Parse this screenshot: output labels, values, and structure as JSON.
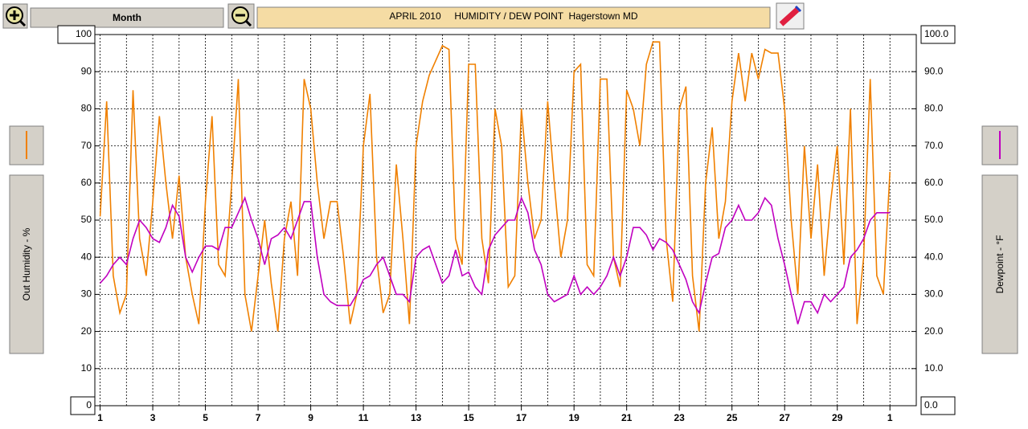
{
  "toolbar": {
    "period": "Month"
  },
  "chart_data": {
    "type": "line",
    "title": "APRIL 2010     HUMIDITY / DEW POINT  Hagerstown MD",
    "ylabel": "Out Humidity - %",
    "y2label": "Dewpoint - °F",
    "x": [
      1,
      1.25,
      1.5,
      1.75,
      2,
      2.25,
      2.5,
      2.75,
      3,
      3.25,
      3.5,
      3.75,
      4,
      4.25,
      4.5,
      4.75,
      5,
      5.25,
      5.5,
      5.75,
      6,
      6.25,
      6.5,
      6.75,
      7,
      7.25,
      7.5,
      7.75,
      8,
      8.25,
      8.5,
      8.75,
      9,
      9.25,
      9.5,
      9.75,
      10,
      10.25,
      10.5,
      10.75,
      11,
      11.25,
      11.5,
      11.75,
      12,
      12.25,
      12.5,
      12.75,
      13,
      13.25,
      13.5,
      13.75,
      14,
      14.25,
      14.5,
      14.75,
      15,
      15.25,
      15.5,
      15.75,
      16,
      16.25,
      16.5,
      16.75,
      17,
      17.25,
      17.5,
      17.75,
      18,
      18.25,
      18.5,
      18.75,
      19,
      19.25,
      19.5,
      19.75,
      20,
      20.25,
      20.5,
      20.75,
      21,
      21.25,
      21.5,
      21.75,
      22,
      22.25,
      22.5,
      22.75,
      23,
      23.25,
      23.5,
      23.75,
      24,
      24.25,
      24.5,
      24.75,
      25,
      25.25,
      25.5,
      25.75,
      26,
      26.25,
      26.5,
      26.75,
      27,
      27.25,
      27.5,
      27.75,
      28,
      28.25,
      28.5,
      28.75,
      29,
      29.25,
      29.5,
      29.75,
      30,
      30.25,
      30.5,
      30.75,
      31
    ],
    "series": [
      {
        "name": "Out Humidity",
        "color": "#f08000",
        "values": [
          51,
          82,
          35,
          25,
          30,
          85,
          45,
          35,
          55,
          78,
          60,
          45,
          62,
          40,
          30,
          22,
          55,
          78,
          38,
          35,
          60,
          88,
          30,
          20,
          35,
          50,
          33,
          20,
          45,
          55,
          35,
          88,
          80,
          60,
          45,
          55,
          55,
          40,
          22,
          30,
          70,
          84,
          40,
          25,
          30,
          65,
          45,
          22,
          70,
          82,
          89,
          93,
          97,
          96,
          45,
          38,
          92,
          92,
          45,
          33,
          80,
          70,
          32,
          35,
          80,
          60,
          45,
          50,
          82,
          60,
          40,
          50,
          90,
          92,
          38,
          35,
          88,
          88,
          40,
          32,
          85,
          80,
          70,
          92,
          98,
          98,
          45,
          28,
          80,
          86,
          35,
          20,
          60,
          75,
          45,
          55,
          82,
          95,
          82,
          95,
          88,
          96,
          95,
          95,
          80,
          50,
          30,
          70,
          45,
          65,
          35,
          55,
          70,
          38,
          80,
          22,
          40,
          88,
          35,
          30,
          63
        ]
      },
      {
        "name": "Dewpoint",
        "color": "#c000c0",
        "axis": "y2",
        "values": [
          33,
          35,
          38,
          40,
          38,
          45,
          50,
          48,
          45,
          44,
          48,
          54,
          51,
          40,
          36,
          40,
          43,
          43,
          42,
          48,
          48,
          52,
          56,
          50,
          45,
          38,
          45,
          46,
          48,
          45,
          50,
          55,
          55,
          40,
          30,
          28,
          27,
          27,
          27,
          30,
          34,
          35,
          38,
          40,
          35,
          30,
          30,
          28,
          40,
          42,
          43,
          38,
          33,
          35,
          42,
          35,
          36,
          32,
          30,
          42,
          46,
          48,
          50,
          50,
          56,
          52,
          42,
          38,
          30,
          28,
          29,
          30,
          35,
          30,
          32,
          30,
          32,
          35,
          40,
          35,
          40,
          48,
          48,
          46,
          42,
          45,
          44,
          42,
          38,
          34,
          28,
          25,
          33,
          40,
          41,
          48,
          50,
          54,
          50,
          50,
          52,
          56,
          54,
          45,
          38,
          30,
          22,
          28,
          28,
          25,
          30,
          28,
          30,
          32,
          40,
          42,
          45,
          50,
          52,
          52,
          52
        ]
      }
    ],
    "xlim": [
      0.8,
      32
    ],
    "xticks": [
      1,
      3,
      5,
      7,
      9,
      11,
      13,
      15,
      17,
      19,
      21,
      23,
      25,
      27,
      29,
      {
        "value": 31,
        "label": "1"
      }
    ],
    "ylim": [
      0,
      100
    ],
    "yticks": [
      0,
      10,
      20,
      30,
      40,
      50,
      60,
      70,
      80,
      90,
      100
    ],
    "y2lim": [
      0,
      100
    ],
    "y2ticks": [
      {
        "value": 0,
        "label": "0.0"
      },
      {
        "value": 10,
        "label": "10.0"
      },
      {
        "value": 20,
        "label": "20.0"
      },
      {
        "value": 30,
        "label": "30.0"
      },
      {
        "value": 40,
        "label": "40.0"
      },
      {
        "value": 50,
        "label": "50.0"
      },
      {
        "value": 60,
        "label": "60.0"
      },
      {
        "value": 70,
        "label": "70.0"
      },
      {
        "value": 80,
        "label": "80.0"
      },
      {
        "value": 90,
        "label": "90.0"
      },
      {
        "value": 100,
        "label": "100.0"
      }
    ],
    "grid": true
  }
}
